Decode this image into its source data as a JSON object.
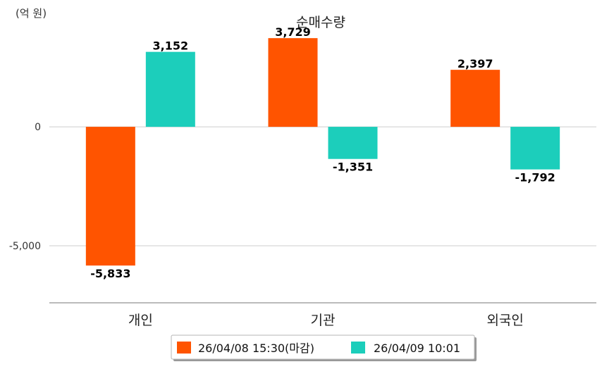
{
  "chart_data": {
    "type": "bar",
    "title": "순매수량",
    "unit_label": "(억 원)",
    "categories": [
      "개인",
      "기관",
      "외국인"
    ],
    "series": [
      {
        "name": "26/04/08 15:30(마감)",
        "color": "#ff5400",
        "values": [
          -5833,
          3729,
          2397
        ],
        "labels": [
          "-5,833",
          "3,729",
          "2,397"
        ]
      },
      {
        "name": "26/04/09 10:01",
        "color": "#1ccebb",
        "values": [
          3152,
          -1351,
          -1792
        ],
        "labels": [
          "3,152",
          "-1,351",
          "-1,792"
        ]
      }
    ],
    "yticks": [
      {
        "value": 0,
        "label": "0"
      },
      {
        "value": -5000,
        "label": "-5,000"
      }
    ],
    "ylim": [
      -7400,
      4000
    ],
    "grid": true,
    "legend_position": "bottom"
  }
}
